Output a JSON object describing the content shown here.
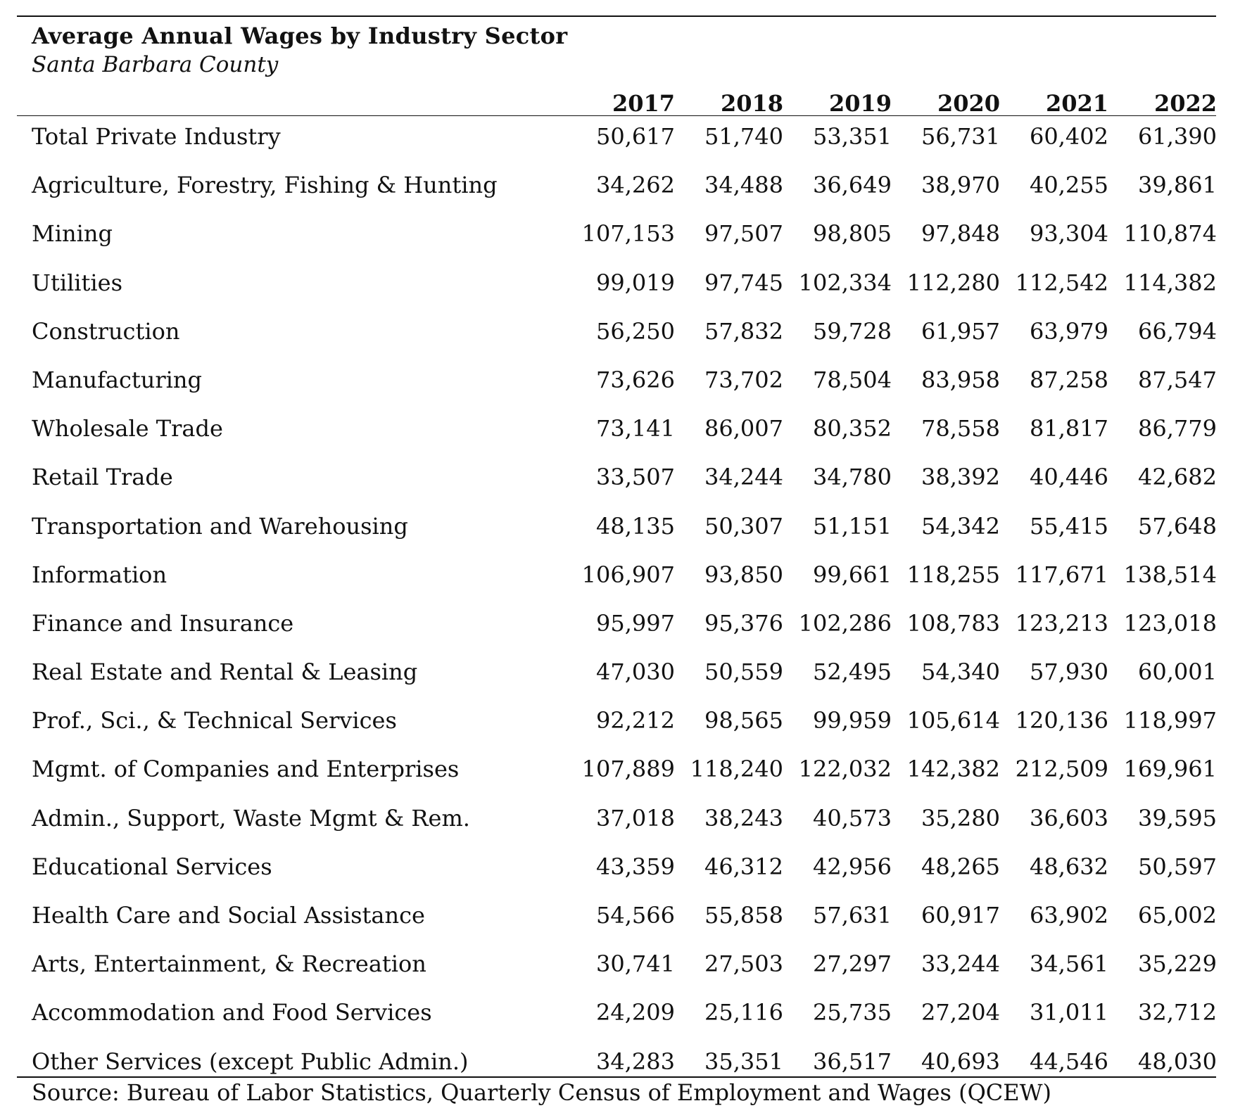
{
  "table": {
    "title": "Average Annual Wages by Industry Sector",
    "subtitle": "Santa Barbara County",
    "years": [
      "2017",
      "2018",
      "2019",
      "2020",
      "2021",
      "2022"
    ],
    "rows": [
      {
        "label": "Total Private Industry",
        "values": [
          "50,617",
          "51,740",
          "53,351",
          "56,731",
          "60,402",
          "61,390"
        ]
      },
      {
        "label": "Agriculture, Forestry, Fishing & Hunting",
        "values": [
          "34,262",
          "34,488",
          "36,649",
          "38,970",
          "40,255",
          "39,861"
        ]
      },
      {
        "label": "Mining",
        "values": [
          "107,153",
          "97,507",
          "98,805",
          "97,848",
          "93,304",
          "110,874"
        ]
      },
      {
        "label": "Utilities",
        "values": [
          "99,019",
          "97,745",
          "102,334",
          "112,280",
          "112,542",
          "114,382"
        ]
      },
      {
        "label": "Construction",
        "values": [
          "56,250",
          "57,832",
          "59,728",
          "61,957",
          "63,979",
          "66,794"
        ]
      },
      {
        "label": "Manufacturing",
        "values": [
          "73,626",
          "73,702",
          "78,504",
          "83,958",
          "87,258",
          "87,547"
        ]
      },
      {
        "label": "Wholesale Trade",
        "values": [
          "73,141",
          "86,007",
          "80,352",
          "78,558",
          "81,817",
          "86,779"
        ]
      },
      {
        "label": "Retail Trade",
        "values": [
          "33,507",
          "34,244",
          "34,780",
          "38,392",
          "40,446",
          "42,682"
        ]
      },
      {
        "label": "Transportation and Warehousing",
        "values": [
          "48,135",
          "50,307",
          "51,151",
          "54,342",
          "55,415",
          "57,648"
        ]
      },
      {
        "label": "Information",
        "values": [
          "106,907",
          "93,850",
          "99,661",
          "118,255",
          "117,671",
          "138,514"
        ]
      },
      {
        "label": "Finance and Insurance",
        "values": [
          "95,997",
          "95,376",
          "102,286",
          "108,783",
          "123,213",
          "123,018"
        ]
      },
      {
        "label": "Real Estate and Rental & Leasing",
        "values": [
          "47,030",
          "50,559",
          "52,495",
          "54,340",
          "57,930",
          "60,001"
        ]
      },
      {
        "label": "Prof., Sci., & Technical Services",
        "values": [
          "92,212",
          "98,565",
          "99,959",
          "105,614",
          "120,136",
          "118,997"
        ]
      },
      {
        "label": "Mgmt. of Companies and Enterprises",
        "values": [
          "107,889",
          "118,240",
          "122,032",
          "142,382",
          "212,509",
          "169,961"
        ]
      },
      {
        "label": "Admin., Support, Waste Mgmt & Rem.",
        "values": [
          "37,018",
          "38,243",
          "40,573",
          "35,280",
          "36,603",
          "39,595"
        ]
      },
      {
        "label": "Educational Services",
        "values": [
          "43,359",
          "46,312",
          "42,956",
          "48,265",
          "48,632",
          "50,597"
        ]
      },
      {
        "label": "Health Care and Social Assistance",
        "values": [
          "54,566",
          "55,858",
          "57,631",
          "60,917",
          "63,902",
          "65,002"
        ]
      },
      {
        "label": "Arts, Entertainment, & Recreation",
        "values": [
          "30,741",
          "27,503",
          "27,297",
          "33,244",
          "34,561",
          "35,229"
        ]
      },
      {
        "label": "Accommodation and Food Services",
        "values": [
          "24,209",
          "25,116",
          "25,735",
          "27,204",
          "31,011",
          "32,712"
        ]
      },
      {
        "label": "Other Services (except Public Admin.)",
        "values": [
          "34,283",
          "35,351",
          "36,517",
          "40,693",
          "44,546",
          "48,030"
        ]
      }
    ],
    "source": "Source: Bureau of Labor Statistics, Quarterly Census of Employment and Wages (QCEW)"
  }
}
